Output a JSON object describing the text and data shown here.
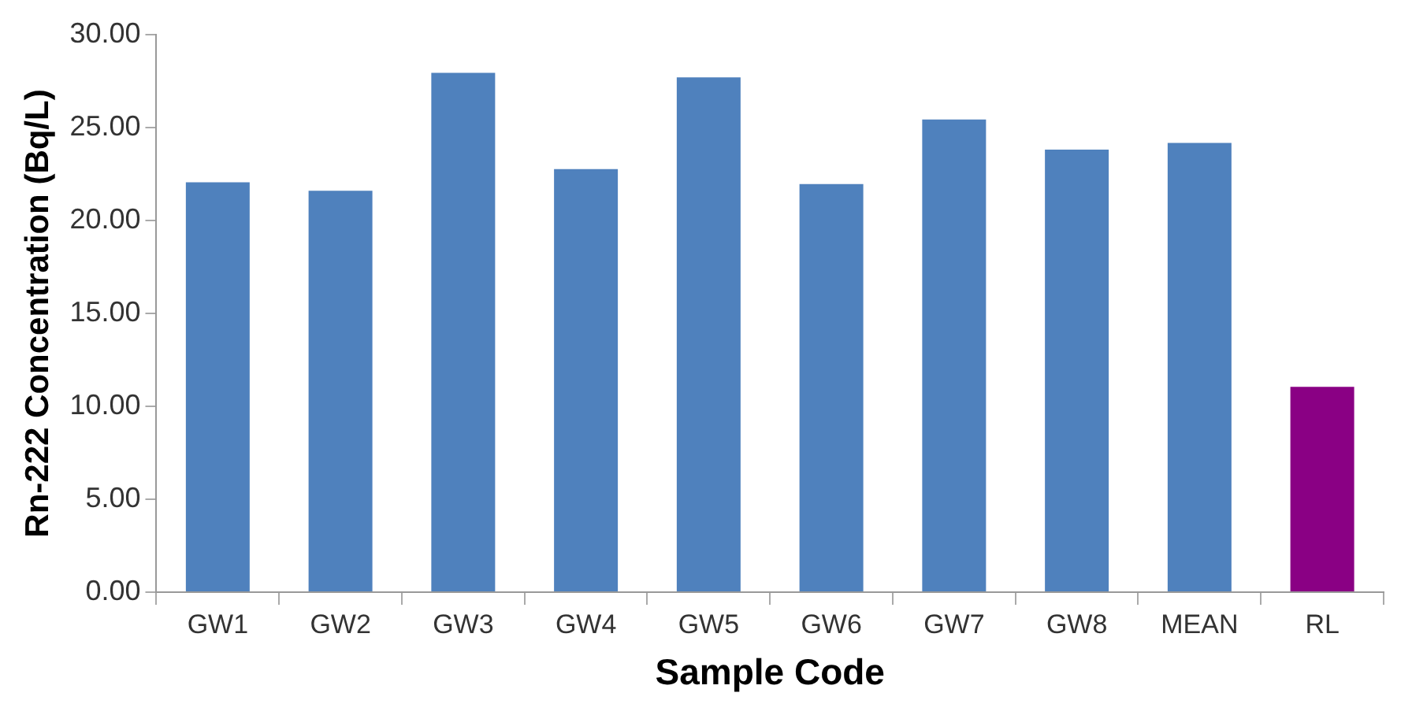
{
  "chart_data": {
    "type": "bar",
    "xlabel": "Sample Code",
    "ylabel": "Rn-222 Concentration (Bq/L)",
    "categories": [
      "GW1",
      "GW2",
      "GW3",
      "GW4",
      "GW5",
      "GW6",
      "GW7",
      "GW8",
      "MEAN",
      "RL"
    ],
    "values": [
      22.05,
      21.6,
      27.94,
      22.77,
      27.7,
      21.96,
      25.43,
      23.81,
      24.17,
      11.05
    ],
    "colors": [
      "#4f81bd",
      "#4f81bd",
      "#4f81bd",
      "#4f81bd",
      "#4f81bd",
      "#4f81bd",
      "#4f81bd",
      "#4f81bd",
      "#4f81bd",
      "#8a0084"
    ],
    "ylim": [
      0,
      30
    ],
    "yticks": [
      {
        "value": 0,
        "label": "0.00"
      },
      {
        "value": 5,
        "label": "5.00"
      },
      {
        "value": 10,
        "label": "10.00"
      },
      {
        "value": 15,
        "label": "15.00"
      },
      {
        "value": 20,
        "label": "20.00"
      },
      {
        "value": 25,
        "label": "25.00"
      },
      {
        "value": 30,
        "label": "30.00"
      }
    ],
    "grid": false,
    "legend": false
  }
}
